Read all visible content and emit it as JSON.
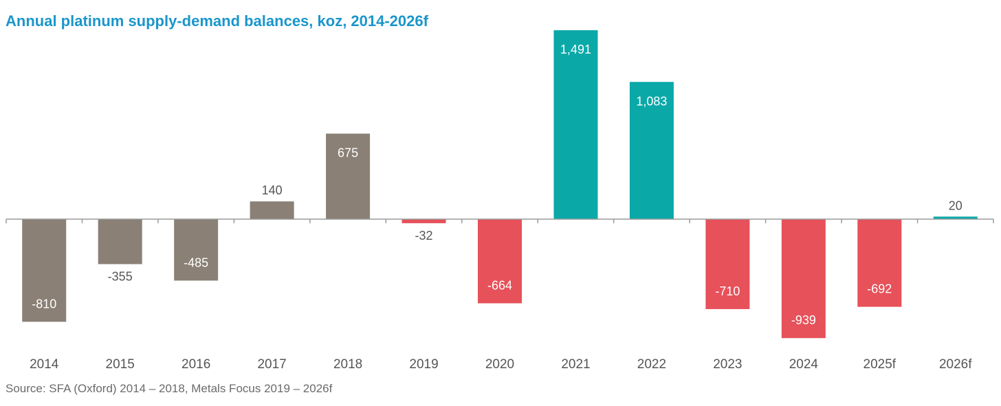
{
  "chart_data": {
    "type": "bar",
    "title": "Annual platinum supply-demand balances, koz, 2014-2026f",
    "source": "Source: SFA (Oxford) 2014 – 2018,  Metals Focus 2019 – 2026f",
    "xlabel": "",
    "ylabel": "",
    "categories": [
      "2014",
      "2015",
      "2016",
      "2017",
      "2018",
      "2019",
      "2020",
      "2021",
      "2022",
      "2023",
      "2024",
      "2025f",
      "2026f"
    ],
    "values": [
      -810,
      -355,
      -485,
      140,
      675,
      -32,
      -664,
      1491,
      1083,
      -710,
      -939,
      -692,
      20
    ],
    "value_labels": [
      "-810",
      "-355",
      "-485",
      "140",
      "675",
      "-32",
      "-664",
      "1,491",
      "1,083",
      "-710",
      "-939",
      "-692",
      "20"
    ],
    "bar_colors": [
      "#8a8075",
      "#8a8075",
      "#8a8075",
      "#8a8075",
      "#8a8075",
      "#e6515a",
      "#e6515a",
      "#0ba8a8",
      "#0ba8a8",
      "#e6515a",
      "#e6515a",
      "#e6515a",
      "#0ba8a8"
    ],
    "ylim": [
      -1100,
      1491
    ],
    "grid": false,
    "legend": "none"
  },
  "colors": {
    "title": "#1a96cb",
    "axis": "#9a9a9a",
    "tick_text": "#555555",
    "label_dark": "#555555",
    "label_light": "#ffffff"
  }
}
